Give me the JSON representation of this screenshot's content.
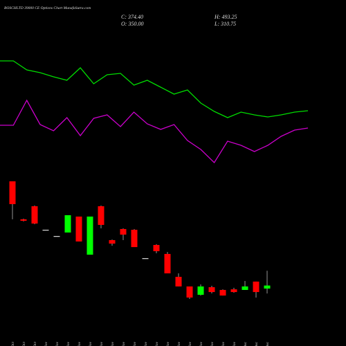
{
  "chart_data": {
    "type": "candlestick",
    "title": "BOSCHLTD 39000 CE Options Chart MunafaSutra.com",
    "ohlc_labels": [
      "C: 374.40",
      "H: 493.25",
      "O: 350.00",
      "L: 310.75"
    ],
    "categories": [
      "29 Oct",
      "30 Oct",
      "31 Oct",
      "04 Nov",
      "05 Nov",
      "06 Nov",
      "07 Nov",
      "08 Nov",
      "11 Nov",
      "12 Nov",
      "13 Nov",
      "14 Nov",
      "18 Nov",
      "19 Nov",
      "21 Nov",
      "22 Nov",
      "25 Nov",
      "26 Nov",
      "27 Nov",
      "28 Nov",
      "29 Nov",
      "02 Dec",
      "03 Dec",
      "04 Dec"
    ],
    "open": [
      1211,
      906,
      1011,
      822,
      772,
      800,
      928,
      622,
      1011,
      739,
      828,
      822,
      594,
      700,
      628,
      444,
      367,
      300,
      361,
      339,
      344,
      339,
      406,
      350
    ],
    "high": [
      1211,
      911,
      1017,
      822,
      772,
      939,
      928,
      928,
      1017,
      744,
      833,
      828,
      594,
      706,
      644,
      472,
      367,
      383,
      372,
      344,
      356,
      411,
      406,
      493.25
    ],
    "low": [
      906,
      889,
      867,
      822,
      772,
      800,
      728,
      622,
      833,
      694,
      739,
      683,
      594,
      633,
      472,
      367,
      267,
      294,
      311,
      294,
      317,
      339,
      278,
      310.75
    ],
    "close": [
      1028,
      894,
      872,
      822,
      772,
      939,
      728,
      928,
      861,
      711,
      783,
      683,
      594,
      650,
      472,
      367,
      278,
      367,
      322,
      294,
      322,
      367,
      322,
      374.4
    ],
    "ylim": [
      250,
      1250
    ],
    "up_color": "#00ff00",
    "down_color": "#ff0000",
    "indicator_ylim": [
      0,
      200
    ],
    "indicators": [
      {
        "color": "#00dd00",
        "values": [
          162,
          162,
          149,
          145,
          139,
          134,
          152,
          129,
          142,
          144,
          127,
          134,
          124,
          114,
          120,
          101,
          89,
          80,
          88,
          84,
          81,
          84,
          88,
          90
        ]
      },
      {
        "color": "#cc00cc",
        "values": [
          69,
          69,
          105,
          70,
          61,
          80,
          54,
          79,
          84,
          67,
          88,
          71,
          63,
          70,
          47,
          34,
          15,
          46,
          40,
          31,
          40,
          53,
          62,
          65
        ]
      }
    ]
  }
}
